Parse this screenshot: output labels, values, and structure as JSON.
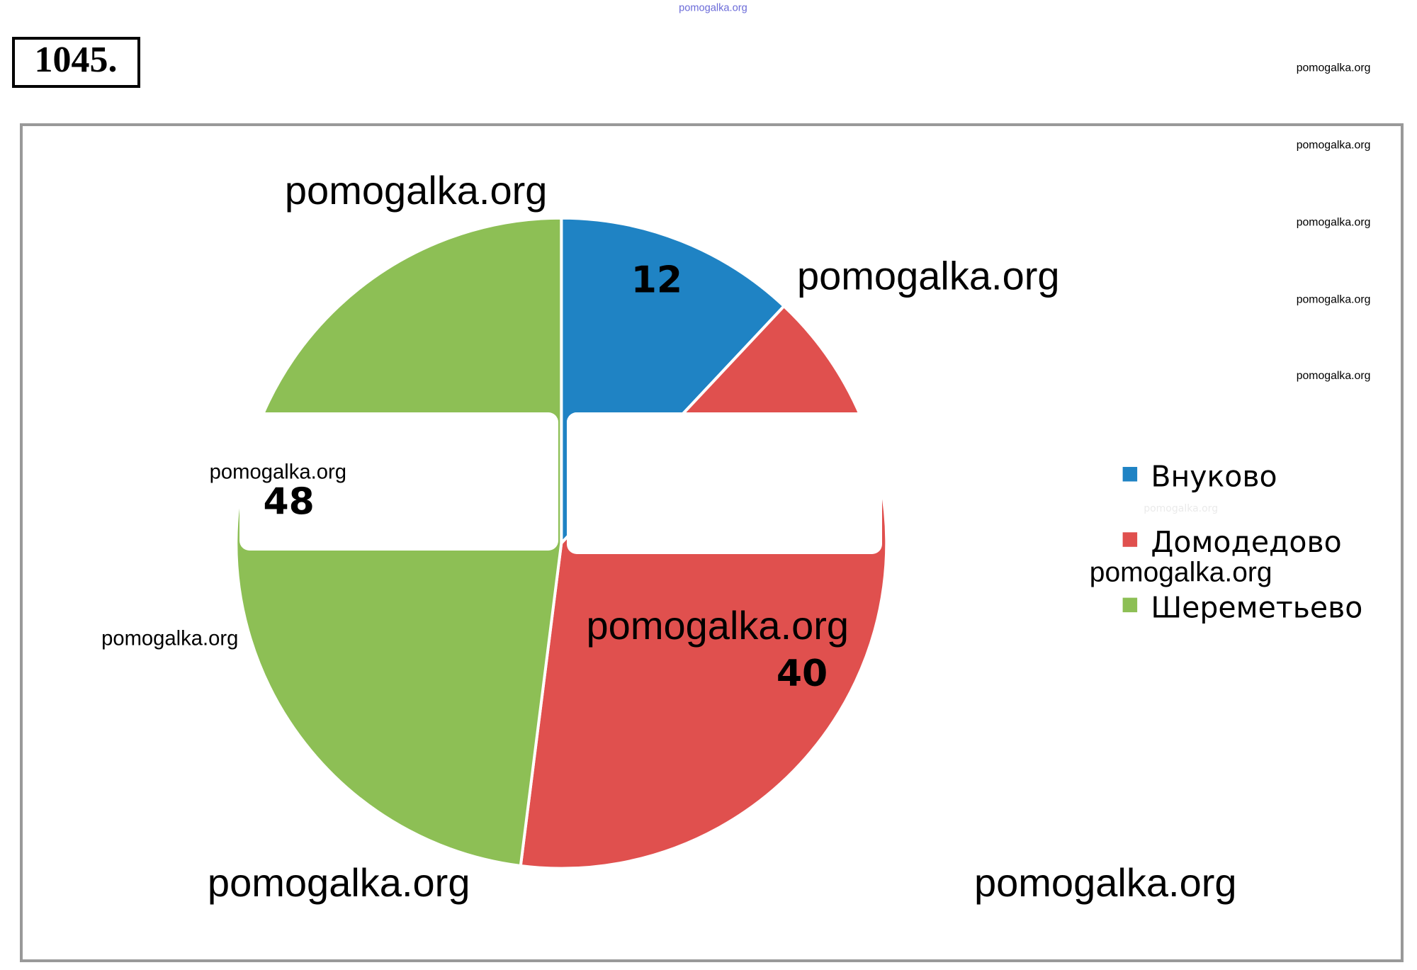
{
  "chart_data": {
    "type": "pie",
    "title": "1045.",
    "categories": [
      "Внуково",
      "Домодедово",
      "Шереметьево"
    ],
    "values": [
      12,
      40,
      48
    ],
    "colors": [
      "#1f83c4",
      "#e0504e",
      "#8dbf55"
    ],
    "legend": "right"
  },
  "watermarks": [
    "pomogalka.org",
    "pomogalka.org",
    "pomogalka.org",
    "pomogalka.org",
    "pomogalka.org",
    "pomogalka.org",
    "pomogalka.org",
    "pomogalka.org",
    "pomogalka.org",
    "pomogalka.org",
    "pomogalka.org",
    "pomogalka.org",
    "pomogalka.org",
    "pomogalka.org",
    "pomogalka.org"
  ]
}
